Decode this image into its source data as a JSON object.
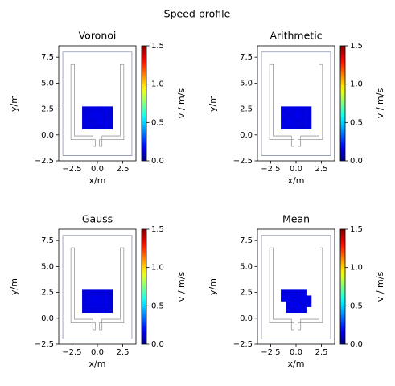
{
  "title": "Speed profile",
  "geometry": {
    "boundary": {
      "x": [
        -3.4,
        3.4,
        3.4,
        -3.4,
        -3.4
      ],
      "y": [
        -2.0,
        -2.0,
        8.0,
        8.0,
        -2.0
      ],
      "color": "#8a94b0"
    },
    "walls": [
      {
        "x": [
          -2.6,
          -2.25,
          -2.25,
          -0.45,
          -0.45,
          -0.2,
          -0.2,
          -2.6,
          -2.6
        ],
        "y": [
          6.8,
          6.8,
          -0.1,
          -0.1,
          -1.1,
          -1.1,
          -0.45,
          -0.45,
          6.8
        ]
      },
      {
        "x": [
          2.6,
          2.25,
          2.25,
          0.45,
          0.45,
          0.2,
          0.2,
          2.6,
          2.6
        ],
        "y": [
          6.8,
          6.8,
          -0.1,
          -0.1,
          -1.1,
          -1.1,
          -0.45,
          -0.45,
          6.8
        ]
      }
    ],
    "wall_color": "#9a9a9a"
  },
  "chart_data": [
    {
      "type": "heatmap",
      "title": "Voronoi",
      "xlabel": "x/m",
      "ylabel": "y/m",
      "colorbar_label": "v / m/s",
      "colormap": "jet",
      "xlim": [
        -3.8,
        3.8
      ],
      "ylim": [
        -2.5,
        8.6
      ],
      "xticks": [
        {
          "value": -2.5,
          "label": "−2.5"
        },
        {
          "value": 0,
          "label": "0.0"
        },
        2.5
      ],
      "yticks": [
        {
          "value": -2.5,
          "label": "−2.5"
        },
        {
          "value": 0,
          "label": "0.0"
        },
        2.5,
        {
          "value": 5,
          "label": "5.0"
        },
        7.5
      ],
      "clim": [
        0,
        1.5
      ],
      "cticks": [
        {
          "value": 0,
          "label": "0.0"
        },
        0.5,
        {
          "value": 1,
          "label": "1.0"
        },
        1.5
      ],
      "x_edges": [
        -1.5,
        -1.0,
        -0.5,
        0.0,
        0.5,
        1.0,
        1.5
      ],
      "y_edges": [
        0.55,
        1.1,
        1.65,
        2.2,
        2.75
      ],
      "z": [
        [
          0.14,
          0.15,
          0.13,
          0.14,
          0.15,
          0.14
        ],
        [
          0.15,
          0.13,
          0.14,
          0.16,
          0.14,
          0.15
        ],
        [
          0.14,
          0.15,
          0.16,
          0.15,
          0.14,
          0.13
        ],
        [
          0.13,
          0.14,
          0.15,
          0.14,
          0.15,
          0.14
        ]
      ]
    },
    {
      "type": "heatmap",
      "title": "Arithmetic",
      "xlabel": "x/m",
      "ylabel": "y/m",
      "colorbar_label": "v / m/s",
      "colormap": "jet",
      "xlim": [
        -3.8,
        3.8
      ],
      "ylim": [
        -2.5,
        8.6
      ],
      "xticks": [
        {
          "value": -2.5,
          "label": "−2.5"
        },
        {
          "value": 0,
          "label": "0.0"
        },
        2.5
      ],
      "yticks": [
        {
          "value": -2.5,
          "label": "−2.5"
        },
        {
          "value": 0,
          "label": "0.0"
        },
        2.5,
        {
          "value": 5,
          "label": "5.0"
        },
        7.5
      ],
      "clim": [
        0,
        1.5
      ],
      "cticks": [
        {
          "value": 0,
          "label": "0.0"
        },
        0.5,
        {
          "value": 1,
          "label": "1.0"
        },
        1.5
      ],
      "x_edges": [
        -1.5,
        -1.0,
        -0.5,
        0.0,
        0.5,
        1.0,
        1.5
      ],
      "y_edges": [
        0.55,
        1.1,
        1.65,
        2.2,
        2.75
      ],
      "z": [
        [
          0.15,
          0.14,
          0.15,
          0.14,
          0.13,
          0.15
        ],
        [
          0.14,
          0.16,
          0.15,
          0.14,
          0.15,
          0.14
        ],
        [
          0.15,
          0.14,
          0.15,
          0.16,
          0.14,
          0.15
        ],
        [
          0.14,
          0.15,
          0.14,
          0.15,
          0.14,
          0.14
        ]
      ]
    },
    {
      "type": "heatmap",
      "title": "Gauss",
      "xlabel": "x/m",
      "ylabel": "y/m",
      "colorbar_label": "v / m/s",
      "colormap": "jet",
      "xlim": [
        -3.8,
        3.8
      ],
      "ylim": [
        -2.5,
        8.6
      ],
      "xticks": [
        {
          "value": -2.5,
          "label": "−2.5"
        },
        {
          "value": 0,
          "label": "0.0"
        },
        2.5
      ],
      "yticks": [
        {
          "value": -2.5,
          "label": "−2.5"
        },
        {
          "value": 0,
          "label": "0.0"
        },
        2.5,
        {
          "value": 5,
          "label": "5.0"
        },
        7.5
      ],
      "clim": [
        0,
        1.5
      ],
      "cticks": [
        {
          "value": 0,
          "label": "0.0"
        },
        0.5,
        {
          "value": 1,
          "label": "1.0"
        },
        1.5
      ],
      "x_edges": [
        -1.5,
        -1.0,
        -0.5,
        0.0,
        0.5,
        1.0,
        1.5
      ],
      "y_edges": [
        0.55,
        1.1,
        1.65,
        2.2,
        2.75
      ],
      "z": [
        [
          0.13,
          0.14,
          0.14,
          0.15,
          0.14,
          0.13
        ],
        [
          0.14,
          0.15,
          0.15,
          0.15,
          0.15,
          0.14
        ],
        [
          0.14,
          0.15,
          0.16,
          0.15,
          0.15,
          0.14
        ],
        [
          0.13,
          0.14,
          0.14,
          0.14,
          0.14,
          0.13
        ]
      ]
    },
    {
      "type": "heatmap",
      "title": "Mean",
      "xlabel": "x/m",
      "ylabel": "y/m",
      "colorbar_label": "v / m/s",
      "colormap": "jet",
      "xlim": [
        -3.8,
        3.8
      ],
      "ylim": [
        -2.5,
        8.6
      ],
      "xticks": [
        {
          "value": -2.5,
          "label": "−2.5"
        },
        {
          "value": 0,
          "label": "0.0"
        },
        2.5
      ],
      "yticks": [
        {
          "value": -2.5,
          "label": "−2.5"
        },
        {
          "value": 0,
          "label": "0.0"
        },
        2.5,
        {
          "value": 5,
          "label": "5.0"
        },
        7.5
      ],
      "clim": [
        0,
        1.5
      ],
      "cticks": [
        {
          "value": 0,
          "label": "0.0"
        },
        0.5,
        {
          "value": 1,
          "label": "1.0"
        },
        1.5
      ],
      "x_edges": [
        -1.5,
        -1.0,
        -0.5,
        0.0,
        0.5,
        1.0,
        1.5
      ],
      "y_edges": [
        0.55,
        1.1,
        1.65,
        2.2,
        2.75
      ],
      "z": [
        [
          null,
          0.15,
          0.14,
          0.16,
          0.15,
          null
        ],
        [
          null,
          0.14,
          0.16,
          0.15,
          0.14,
          0.15
        ],
        [
          0.15,
          0.16,
          0.14,
          0.15,
          0.16,
          0.14
        ],
        [
          0.14,
          0.15,
          0.15,
          0.14,
          0.15,
          null
        ]
      ]
    }
  ]
}
